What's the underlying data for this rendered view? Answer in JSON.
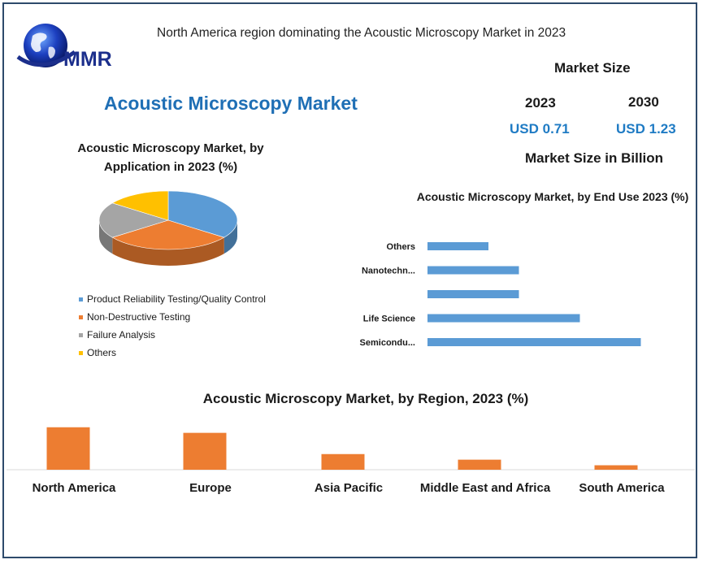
{
  "header": {
    "title": "North America region dominating the Acoustic Microscopy Market in 2023"
  },
  "logo": {
    "text": "MMR"
  },
  "main_title": "Acoustic Microscopy Market",
  "market_size": {
    "label": "Market Size",
    "year_start": "2023",
    "year_end": "2030",
    "value_start": "USD 0.71",
    "value_end": "USD 1.23",
    "unit_label": "Market Size in Billion"
  },
  "colors": {
    "blue": "#5b9bd5",
    "orange": "#ed7d31",
    "gray": "#a5a5a5",
    "yellow": "#ffc000",
    "title_blue": "#1f6fb5"
  },
  "chart_data": [
    {
      "type": "pie",
      "title": "Acoustic Microscopy Market, by Application  in 2023 (%)",
      "categories": [
        "Product Reliability Testing/Quality Control",
        "Non-Destructive Testing",
        "Failure Analysis",
        "Others"
      ],
      "values": [
        35,
        30,
        20,
        15
      ],
      "colors": [
        "#5b9bd5",
        "#ed7d31",
        "#a5a5a5",
        "#ffc000"
      ],
      "legend": "bottom"
    },
    {
      "type": "bar",
      "orientation": "horizontal",
      "title": "Acoustic Microscopy Market, by End Use 2023 (%)",
      "categories": [
        "Others",
        "Nanotechn...",
        "",
        "Life Science",
        "Semicondu..."
      ],
      "values": [
        1,
        1.5,
        1.5,
        2.5,
        3.5
      ],
      "xlim": [
        0,
        4
      ],
      "color": "#5b9bd5"
    },
    {
      "type": "bar",
      "title": "Acoustic Microscopy Market, by Region, 2023 (%)",
      "categories": [
        "North America",
        "Europe",
        "Asia Pacific",
        "Middle East and Africa",
        "South America"
      ],
      "values": [
        38,
        33,
        14,
        9,
        4
      ],
      "ylim": [
        0,
        40
      ],
      "color": "#ed7d31"
    }
  ]
}
